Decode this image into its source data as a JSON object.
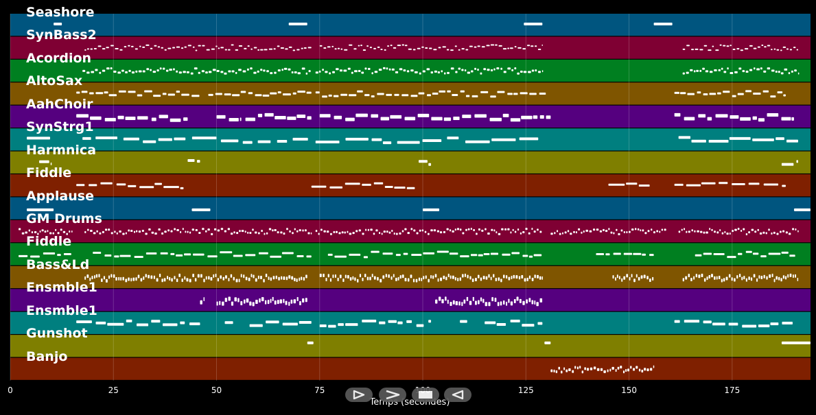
{
  "tracks": [
    {
      "name": "Seashore",
      "color": "#00557f",
      "notes": [
        [
          10.5,
          12.5,
          0.55
        ],
        [
          67.5,
          72,
          0.55
        ],
        [
          124.5,
          129,
          0.55
        ],
        [
          156,
          160.5,
          0.55
        ]
      ]
    },
    {
      "name": "SynBass2",
      "color": "#7f0033",
      "notes": []
    },
    {
      "name": "Acordion",
      "color": "#007f20",
      "notes": []
    },
    {
      "name": "AltoSax",
      "color": "#7f5500",
      "notes": []
    },
    {
      "name": "AahChoir",
      "color": "#55007f",
      "notes": []
    },
    {
      "name": "SynStrg1",
      "color": "#007f7f",
      "notes": []
    },
    {
      "name": "Harmnica",
      "color": "#7f7f00",
      "notes": []
    },
    {
      "name": "Fiddle",
      "color": "#7f2000",
      "notes": []
    },
    {
      "name": "Applause",
      "color": "#00557f",
      "notes": [
        [
          4,
          10.5,
          0.45
        ],
        [
          44,
          48.5,
          0.45
        ],
        [
          100,
          104,
          0.45
        ],
        [
          190,
          194,
          0.45
        ]
      ]
    },
    {
      "name": "GM Drums",
      "color": "#7f0033",
      "notes": []
    },
    {
      "name": "Fiddle",
      "color": "#007f20",
      "notes": []
    },
    {
      "name": "Bass&Ld",
      "color": "#7f5500",
      "notes": []
    },
    {
      "name": "Ensmble1",
      "color": "#55007f",
      "notes": []
    },
    {
      "name": "Ensmble1",
      "color": "#007f7f",
      "notes": []
    },
    {
      "name": "Gunshot",
      "color": "#7f7f00",
      "notes": [
        [
          72,
          73.5,
          0.65
        ],
        [
          129.5,
          131,
          0.65
        ],
        [
          187,
          194,
          0.65
        ]
      ]
    },
    {
      "name": "Banjo",
      "color": "#7f2000",
      "notes": []
    }
  ],
  "x_axis": {
    "label": "Temps (secondes)",
    "min": 0,
    "max": 194,
    "ticks": [
      "0",
      "25",
      "50",
      "75",
      "100",
      "125",
      "150",
      "175"
    ]
  },
  "controls": [
    {
      "name": "play-icon",
      "glyph": "play"
    },
    {
      "name": "forward-icon",
      "glyph": "forward"
    },
    {
      "name": "stop-icon",
      "glyph": "stop"
    },
    {
      "name": "rewind-icon",
      "glyph": "rewind"
    }
  ]
}
